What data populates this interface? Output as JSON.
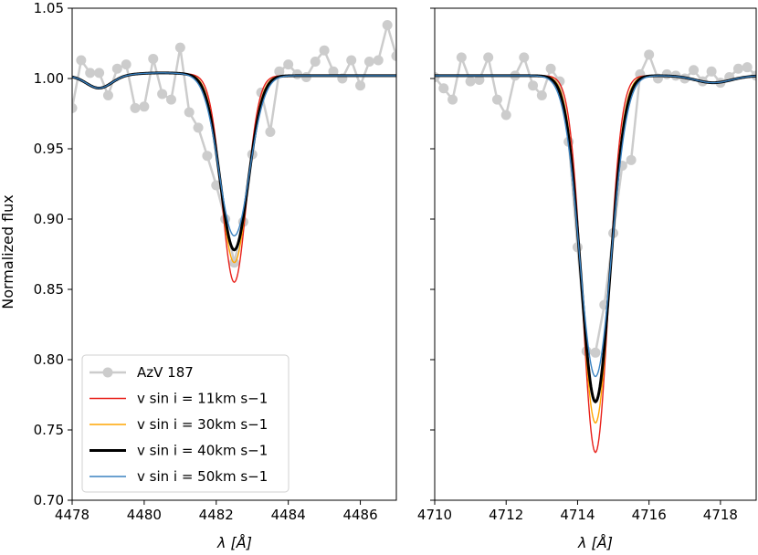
{
  "chart_data": [
    {
      "type": "line",
      "panel": "left",
      "xlabel": "λ [Å]",
      "ylabel": "Normalized flux",
      "xlim": [
        4478,
        4487
      ],
      "ylim": [
        0.7,
        1.05
      ],
      "x_ticks": [
        4478,
        4480,
        4482,
        4484,
        4486
      ],
      "y_ticks": [
        0.7,
        0.75,
        0.8,
        0.85,
        0.9,
        0.95,
        1.0,
        1.05
      ],
      "grid": false,
      "legend_position": "lower-left",
      "observed": {
        "name": "AzV 187",
        "color": "#cccccc",
        "x": [
          4478.0,
          4478.25,
          4478.5,
          4478.75,
          4479.0,
          4479.25,
          4479.5,
          4479.75,
          4480.0,
          4480.25,
          4480.5,
          4480.75,
          4481.0,
          4481.25,
          4481.5,
          4481.75,
          4482.0,
          4482.25,
          4482.5,
          4482.75,
          4483.0,
          4483.25,
          4483.5,
          4483.75,
          4484.0,
          4484.25,
          4484.5,
          4484.75,
          4485.0,
          4485.25,
          4485.5,
          4485.75,
          4486.0,
          4486.25,
          4486.5,
          4486.75,
          4487.0
        ],
        "y": [
          0.979,
          1.013,
          1.004,
          1.004,
          0.988,
          1.007,
          1.01,
          0.979,
          0.98,
          1.014,
          0.989,
          0.985,
          1.022,
          0.976,
          0.965,
          0.945,
          0.924,
          0.9,
          0.869,
          0.898,
          0.946,
          0.99,
          0.962,
          1.005,
          1.01,
          1.003,
          1.001,
          1.012,
          1.02,
          1.005,
          1.0,
          1.013,
          0.995,
          1.012,
          1.013,
          1.038,
          1.016
        ]
      },
      "models": [
        {
          "name": "v sin i = 11km s−1",
          "color": "#e8201a",
          "center": 4482.5,
          "depth": 0.147,
          "sigma": 0.34
        },
        {
          "name": "v sin i = 30km s−1",
          "color": "#ffa500",
          "center": 4482.5,
          "depth": 0.133,
          "sigma": 0.37
        },
        {
          "name": "v sin i = 40km s−1",
          "color": "#000000",
          "center": 4482.5,
          "depth": 0.124,
          "sigma": 0.39
        },
        {
          "name": "v sin i = 50km s−1",
          "color": "#3a82c1",
          "center": 4482.5,
          "depth": 0.114,
          "sigma": 0.42
        }
      ]
    },
    {
      "type": "line",
      "panel": "right",
      "xlabel": "λ [Å]",
      "xlim": [
        4710,
        4719
      ],
      "ylim": [
        0.7,
        1.05
      ],
      "x_ticks": [
        4710,
        4712,
        4714,
        4716,
        4718
      ],
      "y_ticks": [
        0.7,
        0.75,
        0.8,
        0.85,
        0.9,
        0.95,
        1.0,
        1.05
      ],
      "grid": false,
      "observed": {
        "name": "AzV 187",
        "color": "#cccccc",
        "x": [
          4710.0,
          4710.25,
          4710.5,
          4710.75,
          4711.0,
          4711.25,
          4711.5,
          4711.75,
          4712.0,
          4712.25,
          4712.5,
          4712.75,
          4713.0,
          4713.25,
          4713.5,
          4713.75,
          4714.0,
          4714.25,
          4714.5,
          4714.75,
          4715.0,
          4715.25,
          4715.5,
          4715.75,
          4716.0,
          4716.25,
          4716.5,
          4716.75,
          4717.0,
          4717.25,
          4717.5,
          4717.75,
          4718.0,
          4718.25,
          4718.5,
          4718.75,
          4719.0
        ],
        "y": [
          1.001,
          0.993,
          0.985,
          1.015,
          0.998,
          0.999,
          1.015,
          0.985,
          0.974,
          1.002,
          1.015,
          0.995,
          0.988,
          1.007,
          0.998,
          0.955,
          0.88,
          0.806,
          0.805,
          0.839,
          0.89,
          0.938,
          0.942,
          1.003,
          1.017,
          1.0,
          1.003,
          1.002,
          1.0,
          1.006,
          0.998,
          1.005,
          0.997,
          1.001,
          1.007,
          1.008,
          1.002
        ]
      },
      "models": [
        {
          "name": "v sin i = 11km s−1",
          "color": "#e8201a",
          "center": 4714.5,
          "depth": 0.268,
          "sigma": 0.36
        },
        {
          "name": "v sin i = 30km s−1",
          "color": "#ffa500",
          "center": 4714.5,
          "depth": 0.247,
          "sigma": 0.39
        },
        {
          "name": "v sin i = 40km s−1",
          "color": "#000000",
          "center": 4714.5,
          "depth": 0.232,
          "sigma": 0.41
        },
        {
          "name": "v sin i = 50km s−1",
          "color": "#3a82c1",
          "center": 4714.5,
          "depth": 0.214,
          "sigma": 0.44
        }
      ]
    }
  ],
  "legend": {
    "entries": [
      "AzV 187",
      "v sin i = 11km s−1",
      "v sin i = 30km s−1",
      "v sin i = 40km s−1",
      "v sin i = 50km s−1"
    ]
  }
}
